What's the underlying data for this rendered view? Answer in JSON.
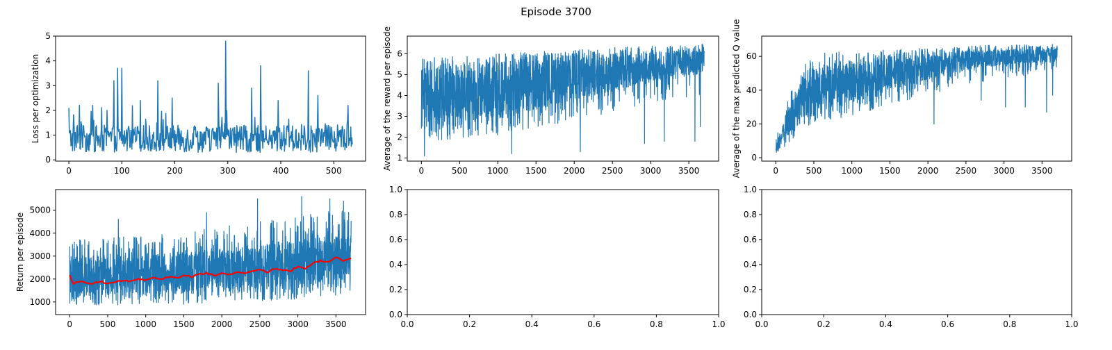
{
  "figure": {
    "title": "Episode 3700"
  },
  "colors": {
    "series": "#1f77b4",
    "moving_average": "#ff0000",
    "axis": "#000000"
  },
  "chart_data": [
    {
      "id": "loss",
      "type": "line",
      "title": "",
      "xlabel": "",
      "ylabel": "Loss per optimization",
      "xlim": [
        -25,
        560
      ],
      "ylim": [
        -0.05,
        5.0
      ],
      "xticks": [
        0,
        100,
        200,
        300,
        400,
        500
      ],
      "yticks": [
        0,
        1,
        2,
        3,
        4,
        5
      ],
      "xtick_labels": [
        "0",
        "100",
        "200",
        "300",
        "400",
        "500"
      ],
      "ytick_labels": [
        "0",
        "1",
        "2",
        "3",
        "4",
        "5"
      ],
      "grid": false,
      "noisy_series": {
        "x_start": 0,
        "x_end": 535,
        "points": 536,
        "baseline": 0.85,
        "noise": 0.55,
        "floor": 0.15,
        "spikes": [
          [
            0,
            2.1
          ],
          [
            20,
            2.2
          ],
          [
            45,
            2.2
          ],
          [
            72,
            2.0
          ],
          [
            85,
            3.2
          ],
          [
            92,
            3.7
          ],
          [
            100,
            3.7
          ],
          [
            135,
            2.4
          ],
          [
            168,
            3.2
          ],
          [
            195,
            2.5
          ],
          [
            282,
            3.1
          ],
          [
            296,
            4.8
          ],
          [
            345,
            2.9
          ],
          [
            362,
            3.8
          ],
          [
            395,
            2.4
          ],
          [
            452,
            3.6
          ],
          [
            470,
            2.6
          ],
          [
            527,
            2.2
          ]
        ]
      }
    },
    {
      "id": "avg-reward",
      "type": "line",
      "title": "",
      "xlabel": "",
      "ylabel": "Average of the reward per episode",
      "xlim": [
        -185,
        3890
      ],
      "ylim": [
        0.85,
        6.85
      ],
      "xticks": [
        0,
        500,
        1000,
        1500,
        2000,
        2500,
        3000,
        3500
      ],
      "yticks": [
        1,
        2,
        3,
        4,
        5,
        6
      ],
      "xtick_labels": [
        "0",
        "500",
        "1000",
        "1500",
        "2000",
        "2500",
        "3000",
        "3500"
      ],
      "ytick_labels": [
        "1",
        "2",
        "3",
        "4",
        "5",
        "6"
      ],
      "grid": false,
      "envelope": {
        "x": [
          0,
          500,
          1000,
          1500,
          2000,
          2500,
          3000,
          3500,
          3700
        ],
        "upper": [
          5.8,
          5.9,
          6.0,
          6.1,
          6.2,
          6.3,
          6.4,
          6.4,
          6.5
        ],
        "lower": [
          1.8,
          1.9,
          2.1,
          2.4,
          2.8,
          3.2,
          3.6,
          3.8,
          4.0
        ],
        "dense_upper": [
          5.4,
          5.5,
          5.6,
          5.8,
          5.9,
          6.0,
          6.1,
          6.2,
          6.3
        ],
        "dense_lower": [
          2.4,
          2.6,
          2.9,
          3.3,
          3.8,
          4.2,
          4.6,
          4.9,
          5.1
        ]
      },
      "dips": [
        [
          40,
          1.1
        ],
        [
          1180,
          1.2
        ],
        [
          2080,
          1.3
        ],
        [
          2920,
          1.7
        ],
        [
          3180,
          1.8
        ],
        [
          3580,
          1.8
        ],
        [
          3650,
          2.5
        ]
      ]
    },
    {
      "id": "max-q",
      "type": "line",
      "title": "",
      "xlabel": "",
      "ylabel": "Average of the max predicted Q value",
      "xlim": [
        -185,
        3890
      ],
      "ylim": [
        -2,
        72
      ],
      "xticks": [
        0,
        500,
        1000,
        1500,
        2000,
        2500,
        3000,
        3500
      ],
      "yticks": [
        0,
        20,
        40,
        60
      ],
      "xtick_labels": [
        "0",
        "500",
        "1000",
        "1500",
        "2000",
        "2500",
        "3000",
        "3500"
      ],
      "ytick_labels": [
        "0",
        "20",
        "40",
        "60"
      ],
      "grid": false,
      "envelope": {
        "x": [
          0,
          100,
          200,
          300,
          400,
          500,
          1000,
          1500,
          2000,
          2500,
          3000,
          3500,
          3700
        ],
        "upper": [
          10,
          28,
          40,
          48,
          56,
          62,
          63,
          64,
          65,
          66,
          67,
          67,
          68
        ],
        "lower": [
          2,
          6,
          10,
          14,
          17,
          20,
          25,
          31,
          37,
          43,
          47,
          50,
          52
        ],
        "dense_upper": [
          6,
          22,
          33,
          41,
          48,
          53,
          58,
          60,
          61,
          63,
          64,
          65,
          66
        ],
        "dense_lower": [
          3,
          10,
          15,
          19,
          22,
          26,
          33,
          40,
          46,
          52,
          55,
          56,
          58
        ]
      },
      "dips": [
        [
          2080,
          20
        ],
        [
          2700,
          34
        ],
        [
          3020,
          30
        ],
        [
          3280,
          30
        ],
        [
          3560,
          27
        ],
        [
          3640,
          37
        ]
      ]
    },
    {
      "id": "return",
      "type": "line",
      "title": "",
      "xlabel": "",
      "ylabel": "Return per episode",
      "xlim": [
        -185,
        3890
      ],
      "ylim": [
        450,
        5900
      ],
      "xticks": [
        0,
        500,
        1000,
        1500,
        2000,
        2500,
        3000,
        3500
      ],
      "yticks": [
        1000,
        2000,
        3000,
        4000,
        5000
      ],
      "xtick_labels": [
        "0",
        "500",
        "1000",
        "1500",
        "2000",
        "2500",
        "3000",
        "3500"
      ],
      "ytick_labels": [
        "1000",
        "2000",
        "3000",
        "4000",
        "5000"
      ],
      "grid": false,
      "envelope": {
        "x": [
          0,
          500,
          1000,
          1500,
          2000,
          2500,
          3000,
          3500,
          3700
        ],
        "upper": [
          3700,
          3800,
          3900,
          4100,
          4300,
          4500,
          4800,
          5000,
          5000
        ],
        "lower": [
          900,
          850,
          850,
          900,
          1000,
          1050,
          1100,
          1200,
          1500
        ],
        "dense_upper": [
          3000,
          3000,
          3100,
          3200,
          3300,
          3500,
          3700,
          3900,
          4000
        ],
        "dense_lower": [
          1300,
          1300,
          1350,
          1400,
          1500,
          1550,
          1600,
          1700,
          1800
        ]
      },
      "dips": [],
      "peaks": [
        [
          640,
          4600
        ],
        [
          1800,
          4900
        ],
        [
          2470,
          5500
        ],
        [
          3050,
          5600
        ],
        [
          3420,
          5500
        ],
        [
          3600,
          5400
        ]
      ],
      "moving_average": {
        "x": [
          0,
          50,
          100,
          200,
          300,
          400,
          500,
          600,
          700,
          800,
          900,
          1000,
          1100,
          1200,
          1300,
          1400,
          1500,
          1600,
          1700,
          1800,
          1900,
          2000,
          2100,
          2200,
          2300,
          2400,
          2500,
          2600,
          2700,
          2800,
          2900,
          3000,
          3100,
          3200,
          3300,
          3400,
          3500,
          3600,
          3700
        ],
        "y": [
          2150,
          1800,
          1900,
          1850,
          1800,
          1900,
          1800,
          1850,
          1950,
          1900,
          2000,
          1950,
          2050,
          2000,
          2100,
          2050,
          2150,
          2100,
          2200,
          2250,
          2150,
          2250,
          2200,
          2300,
          2250,
          2350,
          2400,
          2300,
          2450,
          2400,
          2350,
          2550,
          2450,
          2700,
          2800,
          2750,
          2950,
          2800,
          2900
        ]
      }
    },
    {
      "id": "empty-1",
      "type": "line",
      "title": "",
      "xlabel": "",
      "ylabel": "",
      "xlim": [
        0,
        1
      ],
      "ylim": [
        0,
        1
      ],
      "xticks": [
        0,
        0.2,
        0.4,
        0.6,
        0.8,
        1.0
      ],
      "yticks": [
        0,
        0.2,
        0.4,
        0.6,
        0.8,
        1.0
      ],
      "xtick_labels": [
        "0.0",
        "0.2",
        "0.4",
        "0.6",
        "0.8",
        "1.0"
      ],
      "ytick_labels": [
        "0.0",
        "0.2",
        "0.4",
        "0.6",
        "0.8",
        "1.0"
      ],
      "grid": false
    },
    {
      "id": "empty-2",
      "type": "line",
      "title": "",
      "xlabel": "",
      "ylabel": "",
      "xlim": [
        0,
        1
      ],
      "ylim": [
        0,
        1
      ],
      "xticks": [
        0,
        0.2,
        0.4,
        0.6,
        0.8,
        1.0
      ],
      "yticks": [
        0,
        0.2,
        0.4,
        0.6,
        0.8,
        1.0
      ],
      "xtick_labels": [
        "0.0",
        "0.2",
        "0.4",
        "0.6",
        "0.8",
        "1.0"
      ],
      "ytick_labels": [
        "0.0",
        "0.2",
        "0.4",
        "0.6",
        "0.8",
        "1.0"
      ],
      "grid": false
    }
  ]
}
